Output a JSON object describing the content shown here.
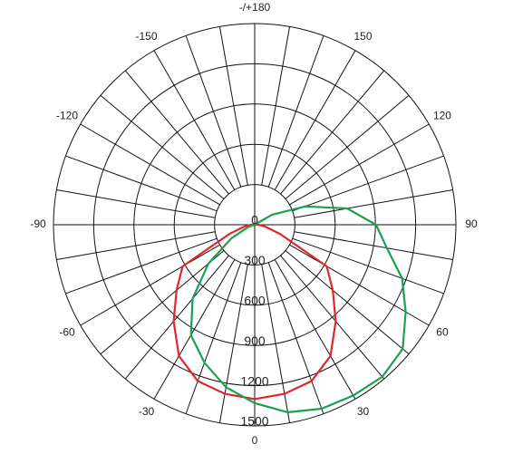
{
  "chart_data": {
    "type": "polar",
    "theta": [
      -180,
      -170,
      -160,
      -150,
      -140,
      -130,
      -120,
      -110,
      -100,
      -90,
      -80,
      -70,
      -60,
      -50,
      -40,
      -30,
      -20,
      -10,
      0,
      10,
      20,
      30,
      40,
      50,
      60,
      70,
      80,
      90,
      100,
      110,
      120,
      130,
      140,
      150,
      160,
      170,
      180
    ],
    "series": [
      {
        "color": "#e0262b",
        "values": [
          0,
          0,
          0,
          0,
          0,
          0,
          0,
          0,
          0,
          30,
          80,
          200,
          620,
          760,
          940,
          1130,
          1240,
          1280,
          1300,
          1280,
          1240,
          1130,
          940,
          760,
          620,
          200,
          80,
          30,
          0,
          0,
          0,
          0,
          0,
          0,
          0,
          0,
          0
        ]
      },
      {
        "color": "#1aa050",
        "values": [
          0,
          0,
          0,
          0,
          0,
          0,
          0,
          0,
          0,
          0,
          0,
          50,
          200,
          450,
          720,
          950,
          1095,
          1230,
          1330,
          1420,
          1460,
          1470,
          1480,
          1440,
          1300,
          1170,
          1000,
          905,
          700,
          400,
          150,
          0,
          0,
          0,
          0,
          0,
          0
        ]
      }
    ],
    "rlim": [
      0,
      1500
    ],
    "rticks": [
      0,
      300,
      600,
      900,
      1200,
      1500
    ],
    "thetaticks": [
      0,
      30,
      60,
      90,
      120,
      150,
      {
        "value": 180,
        "label": "-/+180"
      },
      -150,
      -120,
      -90,
      -60,
      -30
    ]
  }
}
